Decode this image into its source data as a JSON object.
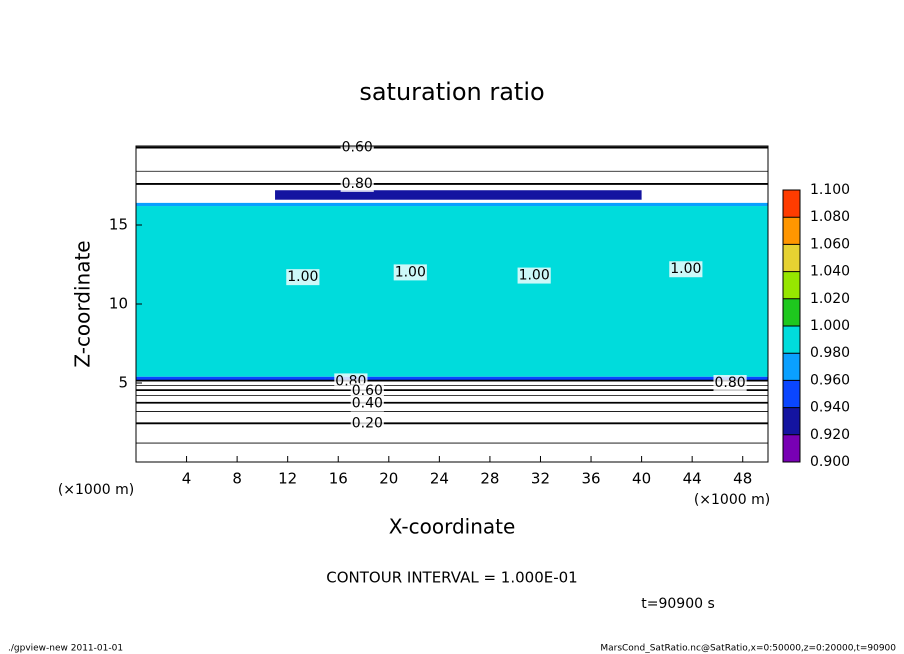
{
  "chart_data": {
    "type": "contour",
    "title": "saturation ratio",
    "x_label": "X-coordinate",
    "y_label": "Z-coordinate",
    "x_unit": "(×1000 m)",
    "y_unit": "(×1000 m)",
    "xlim": [
      0,
      50
    ],
    "ylim": [
      0,
      20
    ],
    "xticks": [
      4,
      8,
      12,
      16,
      20,
      24,
      28,
      32,
      36,
      40,
      44,
      48
    ],
    "yticks": [
      5,
      10,
      15
    ],
    "colorbar": {
      "levels": [
        {
          "value": 0.9,
          "label": "0.900"
        },
        {
          "value": 0.92,
          "label": "0.920"
        },
        {
          "value": 0.94,
          "label": "0.940"
        },
        {
          "value": 0.96,
          "label": "0.960"
        },
        {
          "value": 0.98,
          "label": "0.980"
        },
        {
          "value": 1.0,
          "label": "1.000"
        },
        {
          "value": 1.02,
          "label": "1.020"
        },
        {
          "value": 1.04,
          "label": "1.040"
        },
        {
          "value": 1.06,
          "label": "1.060"
        },
        {
          "value": 1.08,
          "label": "1.080"
        },
        {
          "value": 1.1,
          "label": "1.100"
        }
      ],
      "colors": [
        "#7800b4",
        "#1414a0",
        "#0a46ff",
        "#0aa0ff",
        "#00dcdc",
        "#1ec81e",
        "#96e600",
        "#e6d232",
        "#ff9600",
        "#ff3c00"
      ]
    },
    "field": [
      {
        "x": [
          0,
          50
        ],
        "z": [
          5.1,
          5.4
        ],
        "value": 0.95
      },
      {
        "x": [
          0,
          50
        ],
        "z": [
          5.4,
          16.2
        ],
        "value": 0.99
      },
      {
        "x": [
          0,
          50
        ],
        "z": [
          16.2,
          16.4
        ],
        "value": 0.97
      },
      {
        "x": [
          11,
          40
        ],
        "z": [
          16.6,
          17.2
        ],
        "value": 0.93
      }
    ],
    "contours": [
      {
        "value": 0.1,
        "z": 1.2
      },
      {
        "value": 0.2,
        "z": 2.45
      },
      {
        "value": 0.3,
        "z": 3.2
      },
      {
        "value": 0.4,
        "z": 3.75
      },
      {
        "value": 0.5,
        "z": 4.2
      },
      {
        "value": 0.6,
        "z": 4.55
      },
      {
        "value": 0.7,
        "z": 4.85
      },
      {
        "value": 0.8,
        "z": 5.15
      },
      {
        "value": 0.8,
        "z": 17.6
      },
      {
        "value": 0.7,
        "z": 18.4
      },
      {
        "value": 0.6,
        "z": 19.9
      }
    ],
    "contour_labels": [
      {
        "text": "0.60",
        "x": 17.5,
        "z": 19.9
      },
      {
        "text": "0.80",
        "x": 17.5,
        "z": 17.6
      },
      {
        "text": "1.00",
        "x": 13.2,
        "z": 11.7
      },
      {
        "text": "1.00",
        "x": 21.7,
        "z": 12.0
      },
      {
        "text": "1.00",
        "x": 31.5,
        "z": 11.8
      },
      {
        "text": "1.00",
        "x": 43.5,
        "z": 12.2
      },
      {
        "text": "0.80",
        "x": 17.0,
        "z": 5.1
      },
      {
        "text": "0.60",
        "x": 18.3,
        "z": 4.5
      },
      {
        "text": "0.40",
        "x": 18.3,
        "z": 3.7
      },
      {
        "text": "0.20",
        "x": 18.3,
        "z": 2.45
      },
      {
        "text": "0.80",
        "x": 47.0,
        "z": 5.0
      }
    ],
    "contour_interval": "CONTOUR INTERVAL = 1.000E-01",
    "time": "t=90900 s",
    "footer_left": "./gpview-new  2011-01-01",
    "footer_right": "MarsCond_SatRatio.nc@SatRatio,x=0:50000,z=0:20000,t=90900"
  }
}
